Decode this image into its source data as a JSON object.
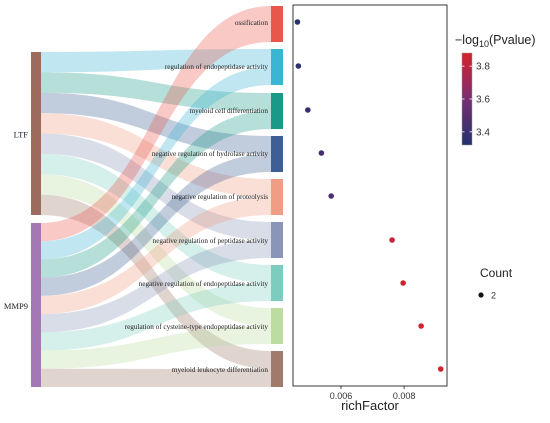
{
  "chart_data": [
    {
      "type": "sankey",
      "sources": [
        {
          "label": "LTF",
          "color": "#9c6b5e"
        },
        {
          "label": "MMP9",
          "color": "#a378b4"
        }
      ],
      "terms": [
        {
          "label": "ossification",
          "color": "#e8574a"
        },
        {
          "label": "regulation of endopeptidase activity",
          "color": "#3ab5d3"
        },
        {
          "label": "myeloid cell differentiation",
          "color": "#1a9a86"
        },
        {
          "label": "negative regulation of hydrolase activity",
          "color": "#3e5f94"
        },
        {
          "label": "negative regulation of proteolysis",
          "color": "#f19d84"
        },
        {
          "label": "negative regulation of peptidase activity",
          "color": "#8a95b8"
        },
        {
          "label": "negative regulation of endopeptidase activity",
          "color": "#7ccdc0"
        },
        {
          "label": "regulation of cysteine-type endopeptidase activity",
          "color": "#bcdca0"
        },
        {
          "label": "myeloid leukocyte differentiation",
          "color": "#a07a6a"
        }
      ],
      "links": [
        {
          "source": "LTF",
          "target": "regulation of endopeptidase activity"
        },
        {
          "source": "LTF",
          "target": "myeloid cell differentiation"
        },
        {
          "source": "LTF",
          "target": "negative regulation of hydrolase activity"
        },
        {
          "source": "LTF",
          "target": "negative regulation of proteolysis"
        },
        {
          "source": "LTF",
          "target": "negative regulation of peptidase activity"
        },
        {
          "source": "LTF",
          "target": "negative regulation of endopeptidase activity"
        },
        {
          "source": "LTF",
          "target": "regulation of cysteine-type endopeptidase activity"
        },
        {
          "source": "LTF",
          "target": "myeloid leukocyte differentiation"
        },
        {
          "source": "MMP9",
          "target": "ossification"
        },
        {
          "source": "MMP9",
          "target": "regulation of endopeptidase activity"
        },
        {
          "source": "MMP9",
          "target": "myeloid cell differentiation"
        },
        {
          "source": "MMP9",
          "target": "negative regulation of hydrolase activity"
        },
        {
          "source": "MMP9",
          "target": "negative regulation of proteolysis"
        },
        {
          "source": "MMP9",
          "target": "negative regulation of peptidase activity"
        },
        {
          "source": "MMP9",
          "target": "negative regulation of endopeptidase activity"
        },
        {
          "source": "MMP9",
          "target": "regulation of cysteine-type endopeptidase activity"
        },
        {
          "source": "MMP9",
          "target": "myeloid leukocyte differentiation"
        }
      ]
    },
    {
      "type": "scatter",
      "xlabel": "richFactor",
      "ylabel": "",
      "xlim": [
        0.00448,
        0.00936
      ],
      "xticks": [
        0.006,
        0.008
      ],
      "xtick_labels": [
        "0.006",
        "0.008"
      ],
      "grid": false,
      "points": [
        {
          "term": "ossification",
          "x": 0.00462,
          "neg_log10_p": 3.34
        },
        {
          "term": "regulation of endopeptidase activity",
          "x": 0.00465,
          "neg_log10_p": 3.35
        },
        {
          "term": "myeloid cell differentiation",
          "x": 0.00495,
          "neg_log10_p": 3.38
        },
        {
          "term": "negative regulation of hydrolase activity",
          "x": 0.00538,
          "neg_log10_p": 3.42
        },
        {
          "term": "negative regulation of proteolysis",
          "x": 0.00569,
          "neg_log10_p": 3.46
        },
        {
          "term": "negative regulation of peptidase activity",
          "x": 0.00762,
          "neg_log10_p": 3.83
        },
        {
          "term": "negative regulation of endopeptidase activity",
          "x": 0.00797,
          "neg_log10_p": 3.85
        },
        {
          "term": "regulation of cysteine-type endopeptidase activity",
          "x": 0.00854,
          "neg_log10_p": 3.86
        },
        {
          "term": "myeloid leukocyte differentiation",
          "x": 0.00916,
          "neg_log10_p": 3.87
        }
      ],
      "color_legend": {
        "title_prefix": "−log",
        "title_sub": "10",
        "title_suffix": "(Pvalue)",
        "ticks": [
          3.4,
          3.6,
          3.8
        ],
        "tick_labels": [
          "3.4",
          "3.6",
          "3.8"
        ],
        "range": [
          3.32,
          3.88
        ],
        "low_color": "#22306e",
        "mid_color": "#7a2d73",
        "high_color": "#d6232a"
      },
      "size_legend": {
        "title": "Count",
        "values": [
          2
        ],
        "labels": [
          "2"
        ]
      }
    }
  ]
}
